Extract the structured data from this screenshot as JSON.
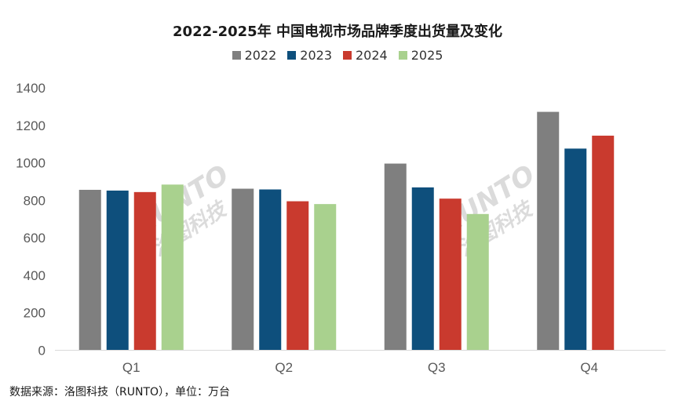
{
  "chart_data": {
    "type": "bar",
    "title": "2022-2025年 中国电视市场品牌季度出货量及变化",
    "categories": [
      "Q1",
      "Q2",
      "Q3",
      "Q4"
    ],
    "series": [
      {
        "name": "2022",
        "color": "#7f7f7f",
        "values": [
          856,
          862,
          996,
          1272
        ]
      },
      {
        "name": "2023",
        "color": "#0e4f7c",
        "values": [
          852,
          858,
          869,
          1076
        ]
      },
      {
        "name": "2024",
        "color": "#c93a2e",
        "values": [
          844,
          795,
          809,
          1145
        ]
      },
      {
        "name": "2025",
        "color": "#a9d18e",
        "values": [
          884,
          780,
          727,
          null
        ]
      }
    ],
    "ylim": [
      0,
      1400
    ],
    "yticks": [
      0,
      200,
      400,
      600,
      800,
      1000,
      1200,
      1400
    ],
    "grid": false,
    "legend_position": "top"
  },
  "watermark": {
    "latin": "RUNTO",
    "chinese": "洛图科技"
  },
  "footer": {
    "source": "数据来源：洛图科技（RUNTO），单位：万台"
  }
}
